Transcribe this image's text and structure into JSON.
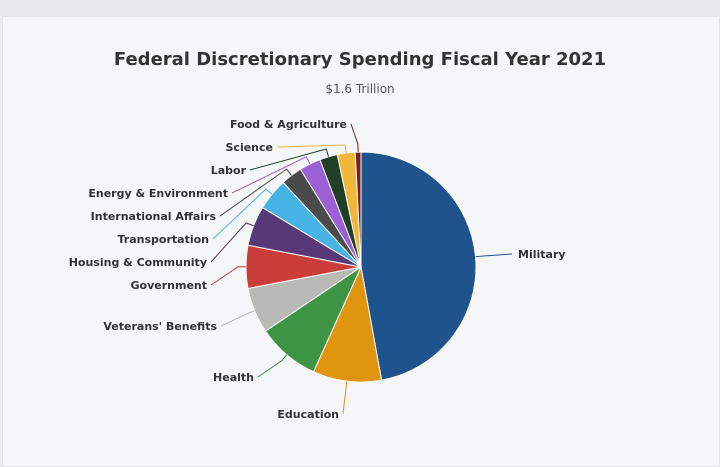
{
  "chart_data": {
    "type": "pie",
    "title": "Federal Discretionary Spending Fiscal Year 2021",
    "subtitle": "$1.6 Trillion",
    "slices": [
      {
        "label": "Military",
        "value": 47,
        "color": "#1f538e"
      },
      {
        "label": "Education",
        "value": 9.6,
        "color": "#e0950f"
      },
      {
        "label": "Health",
        "value": 8.8,
        "color": "#3e9444"
      },
      {
        "label": "Veterans' Benefits",
        "value": 6.4,
        "color": "#b9b9b5"
      },
      {
        "label": "Government",
        "value": 6,
        "color": "#cb3d3a"
      },
      {
        "label": "Housing & Community",
        "value": 5.6,
        "color": "#583978"
      },
      {
        "label": "Transportation",
        "value": 4.5,
        "color": "#47b3e4"
      },
      {
        "label": "International Affairs",
        "value": 3,
        "color": "#4b4b4b"
      },
      {
        "label": "Energy & Environment",
        "value": 3,
        "color": "#9b5fd6"
      },
      {
        "label": "Labor",
        "value": 2.5,
        "color": "#1f3f27"
      },
      {
        "label": "Science",
        "value": 2.5,
        "color": "#f0b73c"
      },
      {
        "label": "Food & Agriculture",
        "value": 0.8,
        "color": "#7a1f1f"
      }
    ]
  }
}
